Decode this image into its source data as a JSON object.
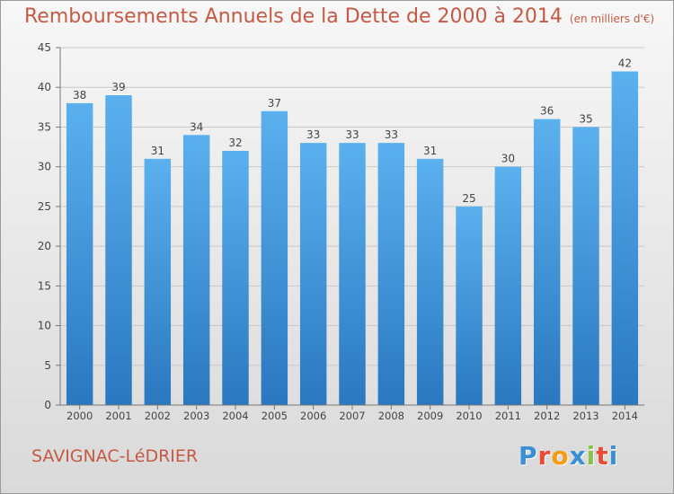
{
  "title": "Remboursements Annuels de la Dette de 2000 à 2014",
  "subtitle": "(en milliers d'€)",
  "commune": "SAVIGNAC-LéDRIER",
  "logo": {
    "letters": [
      "P",
      "r",
      "o",
      "x",
      "i",
      "t",
      "i"
    ],
    "colors": [
      "#3b8fd6",
      "#e94b35",
      "#f39c12",
      "#3b8fd6",
      "#8bc34a",
      "#e94b35",
      "#3b8fd6"
    ]
  },
  "chart_data": {
    "type": "bar",
    "categories": [
      "2000",
      "2001",
      "2002",
      "2003",
      "2004",
      "2005",
      "2006",
      "2007",
      "2008",
      "2009",
      "2010",
      "2011",
      "2012",
      "2013",
      "2014"
    ],
    "values": [
      38,
      39,
      31,
      34,
      32,
      37,
      33,
      33,
      33,
      31,
      25,
      30,
      36,
      35,
      42
    ],
    "ylim": [
      0,
      45
    ],
    "yticks": [
      0,
      5,
      10,
      15,
      20,
      25,
      30,
      35,
      40,
      45
    ],
    "grid": true,
    "bar_color": "#4a9fe0",
    "xlabel": "",
    "ylabel": ""
  }
}
